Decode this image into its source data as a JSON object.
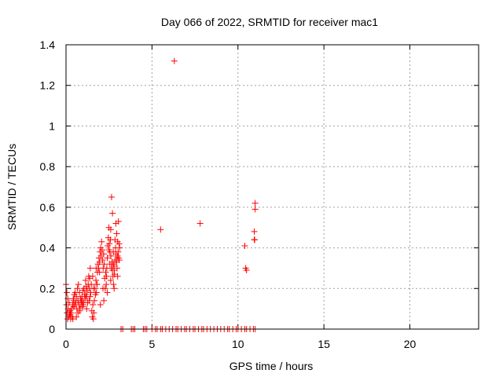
{
  "chart_data": {
    "type": "scatter",
    "title": "Day 066 of 2022, SRMTID for receiver mac1",
    "xlabel": "GPS time / hours",
    "ylabel": "SRMTID / TECUs",
    "xlim": [
      0,
      24
    ],
    "ylim": [
      0,
      1.4
    ],
    "grid": true,
    "xticks": [
      0,
      5,
      10,
      15,
      20
    ],
    "xtick_labels": [
      "0",
      "5",
      "10",
      "15",
      "20"
    ],
    "yticks": [
      0,
      0.2,
      0.4,
      0.6,
      0.8,
      1.0,
      1.2,
      1.4
    ],
    "ytick_labels": [
      "0",
      "0.2",
      "0.4",
      "0.6",
      "0.8",
      "1",
      "1.2",
      "1.4"
    ],
    "marker": "+",
    "series": [
      {
        "name": "SRMTID",
        "color": "#ff0000",
        "x": [
          0.0,
          0.03,
          0.06,
          0.09,
          0.12,
          0.15,
          0.18,
          0.21,
          0.24,
          0.27,
          0.3,
          0.33,
          0.36,
          0.39,
          0.42,
          0.45,
          0.48,
          0.51,
          0.54,
          0.57,
          0.6,
          0.63,
          0.66,
          0.69,
          0.72,
          0.75,
          0.78,
          0.81,
          0.84,
          0.87,
          0.9,
          0.93,
          0.96,
          0.99,
          1.02,
          1.05,
          1.08,
          1.11,
          1.14,
          1.17,
          1.2,
          1.23,
          1.26,
          1.29,
          1.32,
          1.35,
          1.38,
          1.41,
          1.44,
          1.47,
          1.5,
          1.53,
          1.56,
          1.59,
          1.62,
          1.65,
          1.68,
          1.71,
          1.74,
          1.77,
          1.8,
          1.83,
          1.86,
          1.89,
          1.92,
          1.95,
          1.98,
          2.01,
          2.04,
          2.07,
          2.1,
          2.13,
          2.16,
          2.19,
          2.22,
          2.25,
          2.28,
          2.31,
          2.34,
          2.37,
          2.4,
          2.43,
          2.46,
          2.49,
          2.52,
          2.55,
          2.58,
          2.61,
          2.64,
          2.67,
          2.7,
          2.73,
          2.76,
          2.79,
          2.82,
          2.85,
          2.88,
          2.91,
          2.94,
          2.97,
          3.0,
          3.03,
          3.06,
          3.09,
          3.12,
          0.05,
          0.2,
          0.4,
          0.6,
          0.8,
          1.0,
          1.2,
          1.4,
          1.6,
          1.8,
          2.0,
          2.2,
          2.4,
          2.6,
          2.8,
          3.0,
          0.1,
          0.25,
          0.45,
          0.7,
          0.95,
          1.15,
          1.35,
          1.55,
          1.75,
          1.95,
          2.15,
          2.35,
          2.55,
          2.75,
          2.95,
          2.65,
          2.7,
          2.9,
          2.95,
          3.0,
          3.05,
          2.5,
          2.6,
          2.85,
          3.1,
          2.75,
          2.8,
          3.2,
          3.3,
          3.8,
          3.9,
          4.0,
          4.5,
          4.6,
          4.7,
          5.0,
          5.2,
          5.3,
          5.5,
          5.6,
          5.8,
          6.0,
          6.2,
          6.4,
          6.5,
          6.7,
          6.9,
          7.0,
          7.2,
          7.4,
          7.5,
          7.7,
          7.9,
          8.0,
          8.2,
          8.4,
          8.6,
          8.8,
          9.0,
          9.2,
          9.4,
          9.5,
          9.7,
          9.9,
          10.0,
          10.2,
          10.4,
          10.5,
          10.7,
          10.9,
          11.0,
          5.5,
          6.3,
          7.8,
          10.4,
          10.45,
          10.5,
          10.95,
          11.0,
          11.0,
          10.95,
          10.97
        ],
        "y": [
          0.22,
          0.12,
          0.08,
          0.05,
          0.1,
          0.06,
          0.13,
          0.07,
          0.09,
          0.05,
          0.08,
          0.1,
          0.06,
          0.12,
          0.15,
          0.14,
          0.17,
          0.12,
          0.18,
          0.13,
          0.16,
          0.1,
          0.2,
          0.14,
          0.22,
          0.12,
          0.18,
          0.1,
          0.15,
          0.12,
          0.14,
          0.16,
          0.11,
          0.19,
          0.13,
          0.2,
          0.17,
          0.15,
          0.24,
          0.21,
          0.16,
          0.19,
          0.13,
          0.22,
          0.26,
          0.14,
          0.25,
          0.3,
          0.18,
          0.22,
          0.09,
          0.06,
          0.12,
          0.05,
          0.08,
          0.14,
          0.2,
          0.17,
          0.24,
          0.18,
          0.22,
          0.28,
          0.32,
          0.3,
          0.35,
          0.33,
          0.38,
          0.4,
          0.36,
          0.43,
          0.39,
          0.34,
          0.3,
          0.37,
          0.32,
          0.25,
          0.2,
          0.28,
          0.22,
          0.3,
          0.35,
          0.41,
          0.45,
          0.5,
          0.42,
          0.38,
          0.44,
          0.36,
          0.3,
          0.33,
          0.29,
          0.26,
          0.22,
          0.31,
          0.27,
          0.34,
          0.4,
          0.37,
          0.33,
          0.3,
          0.36,
          0.38,
          0.35,
          0.42,
          0.4,
          0.18,
          0.08,
          0.05,
          0.06,
          0.09,
          0.12,
          0.1,
          0.16,
          0.2,
          0.22,
          0.12,
          0.14,
          0.18,
          0.24,
          0.2,
          0.26,
          0.15,
          0.07,
          0.11,
          0.08,
          0.13,
          0.17,
          0.2,
          0.26,
          0.3,
          0.28,
          0.2,
          0.26,
          0.32,
          0.38,
          0.34,
          0.65,
          0.57,
          0.52,
          0.47,
          0.43,
          0.53,
          0.39,
          0.49,
          0.44,
          0.34,
          0.32,
          0.29,
          0,
          0,
          0,
          0,
          0,
          0,
          0,
          0,
          0,
          0,
          0,
          0,
          0,
          0,
          0,
          0,
          0,
          0,
          0,
          0,
          0,
          0,
          0,
          0,
          0,
          0,
          0,
          0,
          0,
          0,
          0,
          0,
          0,
          0,
          0,
          0,
          0,
          0,
          0,
          0,
          0,
          0,
          0,
          0,
          0.49,
          1.32,
          0.52,
          0.41,
          0.3,
          0.29,
          0.44,
          0.62,
          0.59,
          0.48,
          0.44
        ]
      }
    ]
  }
}
